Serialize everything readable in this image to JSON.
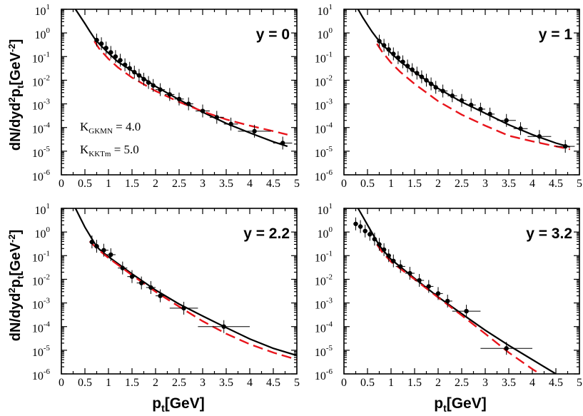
{
  "chart_data": [
    {
      "type": "line",
      "panel": "top-left",
      "title": "y = 0",
      "xlabel": "",
      "ylabel": "dN/dyd²p_t[GeV⁻²]",
      "xlim": [
        0,
        5
      ],
      "ylim": [
        1e-06,
        10
      ],
      "yscale": "log",
      "x_ticks": [
        "0",
        "0.5",
        "1",
        "1.5",
        "2",
        "2.5",
        "3",
        "3.5",
        "4",
        "4.5",
        "5"
      ],
      "y_ticks": [
        {
          "base": "10",
          "exp": "1"
        },
        {
          "base": "10",
          "exp": "0"
        },
        {
          "base": "10",
          "exp": "-1"
        },
        {
          "base": "10",
          "exp": "-2"
        },
        {
          "base": "10",
          "exp": "-3"
        },
        {
          "base": "10",
          "exp": "-4"
        },
        {
          "base": "10",
          "exp": "-5"
        },
        {
          "base": "10",
          "exp": "-6"
        }
      ],
      "annotations": {
        "k1": {
          "main": "K",
          "sub": "GKMN",
          "rest": " = 4.0"
        },
        "k2": {
          "main": "K",
          "sub": "KKTm",
          "rest": " = 5.0"
        }
      },
      "series": [
        {
          "name": "solid",
          "style": "solid",
          "color": "#000000",
          "x": [
            0.3,
            0.4,
            0.5,
            0.6,
            0.7,
            0.8,
            1.0,
            1.2,
            1.5,
            2.0,
            2.5,
            3.0,
            3.5,
            4.0,
            4.5,
            4.8
          ],
          "y": [
            10,
            5,
            2.5,
            1.2,
            0.6,
            0.35,
            0.14,
            0.06,
            0.025,
            0.0055,
            0.0015,
            0.00045,
            0.00015,
            6e-05,
            2.5e-05,
            1.6e-05
          ]
        },
        {
          "name": "dashed",
          "style": "dashed",
          "color": "#e8141b",
          "x": [
            0.7,
            0.8,
            1.0,
            1.2,
            1.5,
            2.0,
            2.5,
            3.0,
            3.5,
            4.0,
            4.5,
            4.8
          ],
          "y": [
            0.45,
            0.22,
            0.08,
            0.035,
            0.013,
            0.0035,
            0.0012,
            0.00048,
            0.00022,
            0.00012,
            7e-05,
            5e-05
          ]
        },
        {
          "name": "data",
          "style": "points",
          "color": "#000000",
          "x": [
            0.75,
            0.85,
            0.95,
            1.05,
            1.15,
            1.25,
            1.35,
            1.45,
            1.55,
            1.65,
            1.75,
            1.85,
            1.95,
            2.1,
            2.3,
            2.5,
            2.7,
            3.0,
            3.3,
            3.6,
            4.1,
            4.7
          ],
          "y": [
            0.5,
            0.35,
            0.23,
            0.15,
            0.1,
            0.07,
            0.045,
            0.032,
            0.022,
            0.016,
            0.011,
            0.008,
            0.006,
            0.004,
            0.0025,
            0.0016,
            0.001,
            0.0005,
            0.00027,
            0.00014,
            7e-05,
            2.2e-05
          ],
          "xerr": [
            0.05,
            0.05,
            0.05,
            0.05,
            0.05,
            0.05,
            0.05,
            0.05,
            0.05,
            0.05,
            0.05,
            0.05,
            0.05,
            0.1,
            0.1,
            0.1,
            0.1,
            0.15,
            0.15,
            0.15,
            0.35,
            0.2
          ]
        }
      ]
    },
    {
      "type": "line",
      "panel": "top-right",
      "title": "y = 1",
      "xlabel": "",
      "ylabel": "",
      "xlim": [
        0,
        5
      ],
      "ylim": [
        1e-06,
        10
      ],
      "yscale": "log",
      "x_ticks": [
        "0",
        "0.5",
        "1",
        "1.5",
        "2",
        "2.5",
        "3",
        "3.5",
        "4",
        "4.5",
        "5"
      ],
      "y_ticks": [
        {
          "base": "10",
          "exp": "1"
        },
        {
          "base": "10",
          "exp": "0"
        },
        {
          "base": "10",
          "exp": "-1"
        },
        {
          "base": "10",
          "exp": "-2"
        },
        {
          "base": "10",
          "exp": "-3"
        },
        {
          "base": "10",
          "exp": "-4"
        },
        {
          "base": "10",
          "exp": "-5"
        },
        {
          "base": "10",
          "exp": "-6"
        }
      ],
      "series": [
        {
          "name": "solid",
          "style": "solid",
          "color": "#000000",
          "x": [
            0.3,
            0.4,
            0.5,
            0.6,
            0.7,
            0.8,
            1.0,
            1.2,
            1.5,
            2.0,
            2.5,
            3.0,
            3.5,
            4.0,
            4.5,
            4.8
          ],
          "y": [
            10,
            4.5,
            2.2,
            1.1,
            0.6,
            0.35,
            0.14,
            0.06,
            0.022,
            0.0045,
            0.0012,
            0.0004,
            0.00013,
            5e-05,
            2.2e-05,
            1.5e-05
          ]
        },
        {
          "name": "dashed",
          "style": "dashed",
          "color": "#e8141b",
          "x": [
            0.7,
            0.8,
            1.0,
            1.2,
            1.5,
            2.0,
            2.5,
            3.0,
            3.5,
            4.0,
            4.5,
            4.8
          ],
          "y": [
            0.35,
            0.17,
            0.055,
            0.022,
            0.007,
            0.0013,
            0.00035,
            0.00012,
            4.5e-05,
            2.6e-05,
            1.6e-05,
            1.2e-05
          ]
        },
        {
          "name": "data",
          "style": "points",
          "color": "#000000",
          "x": [
            0.75,
            0.85,
            0.95,
            1.05,
            1.15,
            1.25,
            1.35,
            1.45,
            1.55,
            1.65,
            1.75,
            1.85,
            1.95,
            2.1,
            2.3,
            2.5,
            2.7,
            2.9,
            3.1,
            3.45,
            3.75,
            4.15,
            4.7
          ],
          "y": [
            0.45,
            0.3,
            0.2,
            0.13,
            0.09,
            0.06,
            0.04,
            0.028,
            0.02,
            0.014,
            0.01,
            0.007,
            0.005,
            0.0035,
            0.0022,
            0.0014,
            0.0009,
            0.0006,
            0.00037,
            0.0002,
            9e-05,
            4.2e-05,
            1.6e-05
          ],
          "xerr": [
            0.05,
            0.05,
            0.05,
            0.05,
            0.05,
            0.05,
            0.05,
            0.05,
            0.05,
            0.05,
            0.05,
            0.05,
            0.05,
            0.1,
            0.1,
            0.1,
            0.1,
            0.1,
            0.1,
            0.2,
            0.15,
            0.25,
            0.2
          ]
        }
      ]
    },
    {
      "type": "line",
      "panel": "bottom-left",
      "title": "y = 2.2",
      "xlabel": "p_t[GeV]",
      "ylabel": "dN/dyd²p_t[GeV⁻²]",
      "xlim": [
        0,
        5
      ],
      "ylim": [
        1e-06,
        10
      ],
      "yscale": "log",
      "x_ticks": [
        "0",
        "0.5",
        "1",
        "1.5",
        "2",
        "2.5",
        "3",
        "3.5",
        "4",
        "4.5",
        "5"
      ],
      "y_ticks": [
        {
          "base": "10",
          "exp": "1"
        },
        {
          "base": "10",
          "exp": "0"
        },
        {
          "base": "10",
          "exp": "-1"
        },
        {
          "base": "10",
          "exp": "-2"
        },
        {
          "base": "10",
          "exp": "-3"
        },
        {
          "base": "10",
          "exp": "-4"
        },
        {
          "base": "10",
          "exp": "-5"
        },
        {
          "base": "10",
          "exp": "-6"
        }
      ],
      "series": [
        {
          "name": "solid",
          "style": "solid",
          "color": "#000000",
          "x": [
            0.3,
            0.4,
            0.5,
            0.6,
            0.7,
            0.8,
            1.0,
            1.5,
            2.0,
            2.5,
            3.0,
            3.5,
            4.0,
            4.5,
            5.0
          ],
          "y": [
            10,
            4,
            1.6,
            0.75,
            0.35,
            0.19,
            0.09,
            0.017,
            0.0035,
            0.0009,
            0.00028,
            9e-05,
            3e-05,
            1.2e-05,
            6e-06
          ]
        },
        {
          "name": "dashed",
          "style": "dashed",
          "color": "#e8141b",
          "x": [
            0.6,
            0.8,
            1.0,
            1.5,
            2.0,
            2.5,
            3.0,
            3.5,
            4.0,
            4.5,
            5.0
          ],
          "y": [
            0.4,
            0.17,
            0.08,
            0.015,
            0.003,
            0.0007,
            0.00017,
            5e-05,
            1.8e-05,
            8e-06,
            4e-06
          ]
        },
        {
          "name": "data",
          "style": "points",
          "color": "#000000",
          "x": [
            0.65,
            0.75,
            0.9,
            1.05,
            1.3,
            1.5,
            1.7,
            1.9,
            2.1,
            2.6,
            3.45
          ],
          "y": [
            0.38,
            0.25,
            0.17,
            0.11,
            0.03,
            0.013,
            0.007,
            0.0045,
            0.002,
            0.0006,
            0.0001
          ],
          "xerr": [
            0.05,
            0.05,
            0.1,
            0.1,
            0.1,
            0.1,
            0.1,
            0.1,
            0.1,
            0.3,
            0.55
          ]
        }
      ]
    },
    {
      "type": "line",
      "panel": "bottom-right",
      "title": "y = 3.2",
      "xlabel": "p_t[GeV]",
      "ylabel": "",
      "xlim": [
        0,
        5
      ],
      "ylim": [
        1e-06,
        10
      ],
      "yscale": "log",
      "x_ticks": [
        "0",
        "0.5",
        "1",
        "1.5",
        "2",
        "2.5",
        "3",
        "3.5",
        "4",
        "4.5",
        "5"
      ],
      "y_ticks": [
        {
          "base": "10",
          "exp": "1"
        },
        {
          "base": "10",
          "exp": "0"
        },
        {
          "base": "10",
          "exp": "-1"
        },
        {
          "base": "10",
          "exp": "-2"
        },
        {
          "base": "10",
          "exp": "-3"
        },
        {
          "base": "10",
          "exp": "-4"
        },
        {
          "base": "10",
          "exp": "-5"
        },
        {
          "base": "10",
          "exp": "-6"
        }
      ],
      "series": [
        {
          "name": "solid",
          "style": "solid",
          "color": "#000000",
          "x": [
            0.3,
            0.4,
            0.5,
            0.6,
            0.7,
            0.8,
            1.0,
            1.5,
            2.0,
            2.5,
            3.0,
            3.5,
            4.0,
            4.5
          ],
          "y": [
            10,
            4.5,
            2,
            0.9,
            0.4,
            0.2,
            0.07,
            0.011,
            0.0018,
            0.00035,
            7e-05,
            1.6e-05,
            4e-06,
            1e-06
          ]
        },
        {
          "name": "dashed",
          "style": "dashed",
          "color": "#e8141b",
          "x": [
            0.7,
            0.8,
            1.0,
            1.5,
            2.0,
            2.5,
            3.0,
            3.5,
            4.0,
            4.4
          ],
          "y": [
            0.3,
            0.15,
            0.055,
            0.01,
            0.0017,
            0.0003,
            5e-05,
            8e-06,
            1.6e-06,
            5e-07
          ]
        },
        {
          "name": "data",
          "style": "points",
          "color": "#000000",
          "x": [
            0.25,
            0.35,
            0.45,
            0.55,
            0.65,
            0.75,
            0.85,
            0.95,
            1.05,
            1.2,
            1.4,
            1.6,
            1.8,
            2.0,
            2.2,
            2.6,
            3.45
          ],
          "y": [
            2.2,
            1.7,
            1.1,
            0.8,
            0.5,
            0.3,
            0.18,
            0.1,
            0.06,
            0.035,
            0.018,
            0.009,
            0.005,
            0.0025,
            0.0012,
            0.00045,
            1.2e-05
          ],
          "xerr": [
            0.05,
            0.05,
            0.05,
            0.05,
            0.05,
            0.05,
            0.05,
            0.05,
            0.05,
            0.1,
            0.1,
            0.1,
            0.1,
            0.1,
            0.1,
            0.3,
            0.55
          ]
        }
      ]
    }
  ]
}
